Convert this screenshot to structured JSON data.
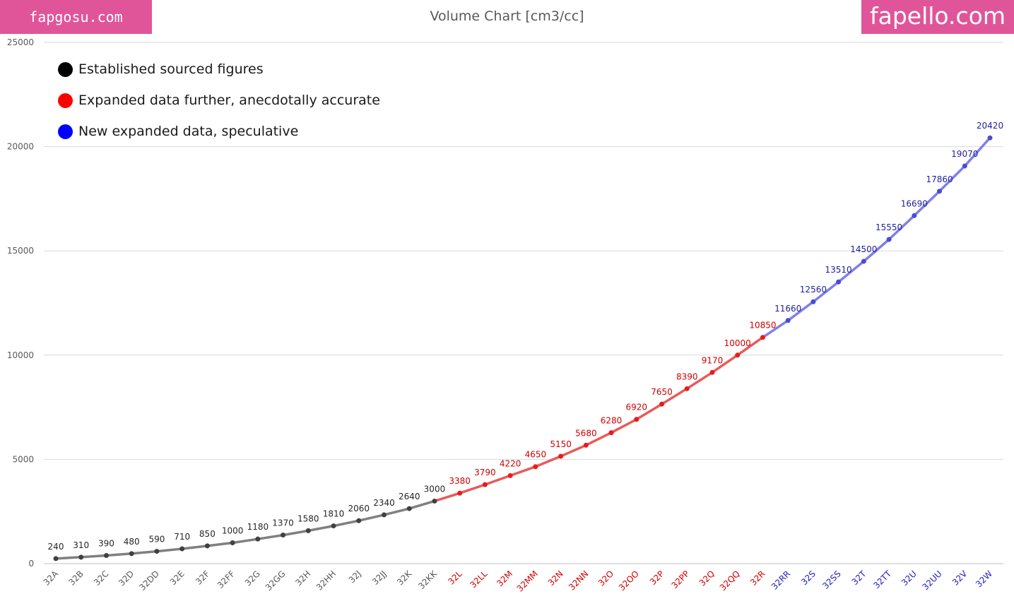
{
  "watermarks": {
    "left": "fapgosu.com",
    "right": "fapello.com"
  },
  "chart_data": {
    "type": "line",
    "title": "Volume Chart [cm3/cc]",
    "xlabel": "",
    "ylabel": "",
    "ylim": [
      0,
      25000
    ],
    "yticks": [
      0,
      5000,
      10000,
      15000,
      20000,
      25000
    ],
    "grid": true,
    "legend_position": "top-left",
    "categories": [
      "32A",
      "32B",
      "32C",
      "32D",
      "32DD",
      "32E",
      "32F",
      "32FF",
      "32G",
      "32GG",
      "32H",
      "32HH",
      "32J",
      "32JJ",
      "32K",
      "32KK",
      "32L",
      "32LL",
      "32M",
      "32MM",
      "32N",
      "32NN",
      "32O",
      "32OO",
      "32P",
      "32PP",
      "32Q",
      "32QQ",
      "32R",
      "32RR",
      "32S",
      "32SS",
      "32T",
      "32TT",
      "32U",
      "32UU",
      "32V",
      "32W"
    ],
    "values": [
      240,
      310,
      390,
      480,
      590,
      710,
      850,
      1000,
      1180,
      1370,
      1580,
      1810,
      2060,
      2340,
      2640,
      3000,
      3380,
      3790,
      4220,
      4650,
      5150,
      5680,
      6280,
      6920,
      7650,
      8390,
      9170,
      10000,
      10850,
      11660,
      12560,
      13510,
      14500,
      15550,
      16690,
      17860,
      19070,
      20420
    ],
    "series": [
      {
        "name": "Established sourced figures",
        "start": 0,
        "end": 15,
        "color": "#000000",
        "line_color": "#808080",
        "marker_color": "#404040",
        "label_color": "#262626"
      },
      {
        "name": "Expanded data further, anecdotally accurate",
        "start": 15,
        "end": 28,
        "color": "#ff0000",
        "line_color": "#e85a5a",
        "marker_color": "#e81c1c",
        "label_color": "#d00000"
      },
      {
        "name": "New expanded data, speculative",
        "start": 28,
        "end": 37,
        "color": "#0000ff",
        "line_color": "#8080e8",
        "marker_color": "#4a4ad8",
        "label_color": "#2020a0"
      }
    ],
    "tick_colors": {
      "gray": "#595959",
      "red": "#d00000",
      "blue": "#2020c0"
    }
  }
}
